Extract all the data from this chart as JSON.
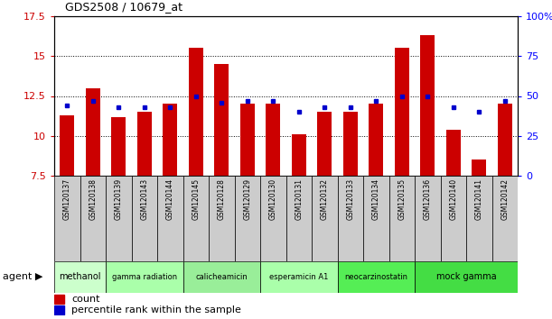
{
  "title": "GDS2508 / 10679_at",
  "samples": [
    "GSM120137",
    "GSM120138",
    "GSM120139",
    "GSM120143",
    "GSM120144",
    "GSM120145",
    "GSM120128",
    "GSM120129",
    "GSM120130",
    "GSM120131",
    "GSM120132",
    "GSM120133",
    "GSM120134",
    "GSM120135",
    "GSM120136",
    "GSM120140",
    "GSM120141",
    "GSM120142"
  ],
  "bar_values": [
    11.3,
    13.0,
    11.2,
    11.5,
    12.0,
    15.5,
    14.5,
    12.0,
    12.0,
    10.1,
    11.5,
    11.5,
    12.0,
    15.5,
    16.3,
    10.4,
    8.5,
    12.0
  ],
  "dot_values": [
    44,
    47,
    43,
    43,
    43,
    50,
    46,
    47,
    47,
    40,
    43,
    43,
    47,
    50,
    50,
    43,
    40,
    47
  ],
  "ylim_left": [
    7.5,
    17.5
  ],
  "ylim_right": [
    0,
    100
  ],
  "yticks_left": [
    7.5,
    10.0,
    12.5,
    15.0,
    17.5
  ],
  "yticks_right": [
    0,
    25,
    50,
    75,
    100
  ],
  "bar_color": "#cc0000",
  "dot_color": "#0000cc",
  "right_axis_color": "#0000ff",
  "left_axis_color": "#cc0000",
  "sample_box_color": "#cccccc",
  "agents": [
    {
      "label": "methanol",
      "start": 0,
      "end": 2,
      "color": "#ccffcc"
    },
    {
      "label": "gamma radiation",
      "start": 2,
      "end": 5,
      "color": "#aaffaa"
    },
    {
      "label": "calicheamicin",
      "start": 5,
      "end": 8,
      "color": "#99ee99"
    },
    {
      "label": "esperamicin A1",
      "start": 8,
      "end": 11,
      "color": "#aaffaa"
    },
    {
      "label": "neocarzinostatin",
      "start": 11,
      "end": 14,
      "color": "#55ee55"
    },
    {
      "label": "mock gamma",
      "start": 14,
      "end": 18,
      "color": "#44dd44"
    }
  ],
  "grid_yticks": [
    10.0,
    12.5,
    15.0
  ]
}
